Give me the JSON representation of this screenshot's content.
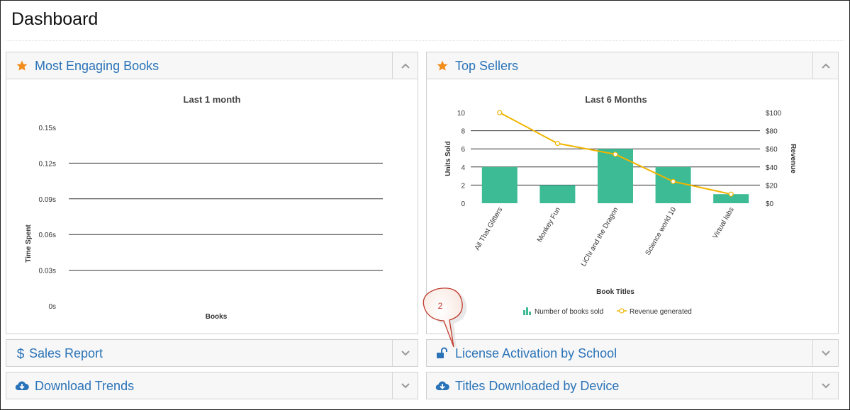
{
  "page": {
    "title": "Dashboard"
  },
  "panels": {
    "most_engaging": {
      "title": "Most Engaging Books",
      "icon": "star-icon"
    },
    "top_sellers": {
      "title": "Top Sellers",
      "icon": "star-icon"
    },
    "sales_report": {
      "title": "Sales Report",
      "icon": "dollar-icon"
    },
    "license_activation": {
      "title": "License Activation by School",
      "icon": "unlock-icon"
    },
    "download_trends": {
      "title": "Download Trends",
      "icon": "cloud-download-icon"
    },
    "titles_downloaded": {
      "title": "Titles Downloaded by Device",
      "icon": "cloud-download-icon"
    }
  },
  "annotation": {
    "label": "2"
  },
  "colors": {
    "accent": "#2a73b8",
    "star": "#f28c1a",
    "bar": "#3dbb94",
    "line": "#f0b400"
  },
  "chart_data": [
    {
      "type": "bar",
      "title": "Last 1 month",
      "xlabel": "Books",
      "ylabel": "Time Spent",
      "y_ticks": [
        "0s",
        "0.03s",
        "0.06s",
        "0.09s",
        "0.12s",
        "0.15s"
      ],
      "ylim": [
        0,
        0.15
      ],
      "grid": true,
      "categories": [],
      "values": []
    },
    {
      "type": "bar",
      "title": "Last 6 Months",
      "xlabel": "Book Titles",
      "ylabel": "Units Sold",
      "ylabel_right": "Revenue",
      "ylim": [
        0,
        10
      ],
      "ylim_right": [
        0,
        100
      ],
      "y_ticks": [
        "0",
        "2",
        "4",
        "6",
        "8",
        "10"
      ],
      "y_ticks_right": [
        "$0",
        "$20",
        "$40",
        "$60",
        "$80",
        "$100"
      ],
      "grid": true,
      "legend_position": "bottom",
      "categories": [
        "All That Glitters",
        "Monkey Fun",
        "LiChi and the Dragon",
        "Science world 10",
        "Virtual labs"
      ],
      "series": [
        {
          "name": "Number of books sold",
          "type": "bar",
          "axis": "left",
          "values": [
            4,
            2,
            6,
            4,
            1
          ]
        },
        {
          "name": "Revenue generated",
          "type": "line",
          "axis": "right",
          "values": [
            100,
            66,
            54,
            24,
            10
          ]
        }
      ]
    }
  ]
}
